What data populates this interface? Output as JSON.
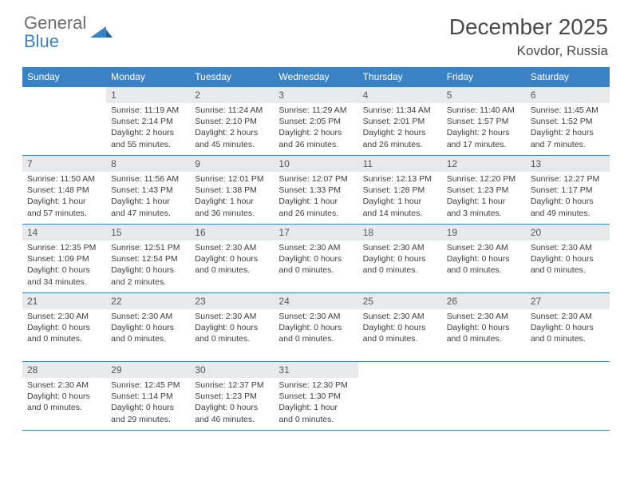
{
  "brand": {
    "word1": "General",
    "word2": "Blue"
  },
  "colors": {
    "accent": "#3b82c4",
    "header_bg": "#3b82c4",
    "header_text": "#ffffff",
    "daynum_bg": "#e8e9eb",
    "text": "#3a3a3a",
    "border": "#3b82c4"
  },
  "title": "December 2025",
  "location": "Kovdor, Russia",
  "weekdays": [
    "Sunday",
    "Monday",
    "Tuesday",
    "Wednesday",
    "Thursday",
    "Friday",
    "Saturday"
  ],
  "weeks": [
    [
      {
        "num": "",
        "lines": []
      },
      {
        "num": "1",
        "lines": [
          "Sunrise: 11:19 AM",
          "Sunset: 2:14 PM",
          "Daylight: 2 hours and 55 minutes."
        ]
      },
      {
        "num": "2",
        "lines": [
          "Sunrise: 11:24 AM",
          "Sunset: 2:10 PM",
          "Daylight: 2 hours and 45 minutes."
        ]
      },
      {
        "num": "3",
        "lines": [
          "Sunrise: 11:29 AM",
          "Sunset: 2:05 PM",
          "Daylight: 2 hours and 36 minutes."
        ]
      },
      {
        "num": "4",
        "lines": [
          "Sunrise: 11:34 AM",
          "Sunset: 2:01 PM",
          "Daylight: 2 hours and 26 minutes."
        ]
      },
      {
        "num": "5",
        "lines": [
          "Sunrise: 11:40 AM",
          "Sunset: 1:57 PM",
          "Daylight: 2 hours and 17 minutes."
        ]
      },
      {
        "num": "6",
        "lines": [
          "Sunrise: 11:45 AM",
          "Sunset: 1:52 PM",
          "Daylight: 2 hours and 7 minutes."
        ]
      }
    ],
    [
      {
        "num": "7",
        "lines": [
          "Sunrise: 11:50 AM",
          "Sunset: 1:48 PM",
          "Daylight: 1 hour and 57 minutes."
        ]
      },
      {
        "num": "8",
        "lines": [
          "Sunrise: 11:56 AM",
          "Sunset: 1:43 PM",
          "Daylight: 1 hour and 47 minutes."
        ]
      },
      {
        "num": "9",
        "lines": [
          "Sunrise: 12:01 PM",
          "Sunset: 1:38 PM",
          "Daylight: 1 hour and 36 minutes."
        ]
      },
      {
        "num": "10",
        "lines": [
          "Sunrise: 12:07 PM",
          "Sunset: 1:33 PM",
          "Daylight: 1 hour and 26 minutes."
        ]
      },
      {
        "num": "11",
        "lines": [
          "Sunrise: 12:13 PM",
          "Sunset: 1:28 PM",
          "Daylight: 1 hour and 14 minutes."
        ]
      },
      {
        "num": "12",
        "lines": [
          "Sunrise: 12:20 PM",
          "Sunset: 1:23 PM",
          "Daylight: 1 hour and 3 minutes."
        ]
      },
      {
        "num": "13",
        "lines": [
          "Sunrise: 12:27 PM",
          "Sunset: 1:17 PM",
          "Daylight: 0 hours and 49 minutes."
        ]
      }
    ],
    [
      {
        "num": "14",
        "lines": [
          "Sunrise: 12:35 PM",
          "Sunset: 1:09 PM",
          "Daylight: 0 hours and 34 minutes."
        ]
      },
      {
        "num": "15",
        "lines": [
          "Sunrise: 12:51 PM",
          "Sunset: 12:54 PM",
          "Daylight: 0 hours and 2 minutes."
        ]
      },
      {
        "num": "16",
        "lines": [
          "",
          "Sunset: 2:30 AM",
          "Daylight: 0 hours and 0 minutes."
        ]
      },
      {
        "num": "17",
        "lines": [
          "",
          "Sunset: 2:30 AM",
          "Daylight: 0 hours and 0 minutes."
        ]
      },
      {
        "num": "18",
        "lines": [
          "",
          "Sunset: 2:30 AM",
          "Daylight: 0 hours and 0 minutes."
        ]
      },
      {
        "num": "19",
        "lines": [
          "",
          "Sunset: 2:30 AM",
          "Daylight: 0 hours and 0 minutes."
        ]
      },
      {
        "num": "20",
        "lines": [
          "",
          "Sunset: 2:30 AM",
          "Daylight: 0 hours and 0 minutes."
        ]
      }
    ],
    [
      {
        "num": "21",
        "lines": [
          "",
          "Sunset: 2:30 AM",
          "Daylight: 0 hours and 0 minutes."
        ]
      },
      {
        "num": "22",
        "lines": [
          "",
          "Sunset: 2:30 AM",
          "Daylight: 0 hours and 0 minutes."
        ]
      },
      {
        "num": "23",
        "lines": [
          "",
          "Sunset: 2:30 AM",
          "Daylight: 0 hours and 0 minutes."
        ]
      },
      {
        "num": "24",
        "lines": [
          "",
          "Sunset: 2:30 AM",
          "Daylight: 0 hours and 0 minutes."
        ]
      },
      {
        "num": "25",
        "lines": [
          "",
          "Sunset: 2:30 AM",
          "Daylight: 0 hours and 0 minutes."
        ]
      },
      {
        "num": "26",
        "lines": [
          "",
          "Sunset: 2:30 AM",
          "Daylight: 0 hours and 0 minutes."
        ]
      },
      {
        "num": "27",
        "lines": [
          "",
          "Sunset: 2:30 AM",
          "Daylight: 0 hours and 0 minutes."
        ]
      }
    ],
    [
      {
        "num": "28",
        "lines": [
          "",
          "Sunset: 2:30 AM",
          "Daylight: 0 hours and 0 minutes."
        ]
      },
      {
        "num": "29",
        "lines": [
          "Sunrise: 12:45 PM",
          "Sunset: 1:14 PM",
          "Daylight: 0 hours and 29 minutes."
        ]
      },
      {
        "num": "30",
        "lines": [
          "Sunrise: 12:37 PM",
          "Sunset: 1:23 PM",
          "Daylight: 0 hours and 46 minutes."
        ]
      },
      {
        "num": "31",
        "lines": [
          "Sunrise: 12:30 PM",
          "Sunset: 1:30 PM",
          "Daylight: 1 hour and 0 minutes."
        ]
      },
      {
        "num": "",
        "lines": []
      },
      {
        "num": "",
        "lines": []
      },
      {
        "num": "",
        "lines": []
      }
    ]
  ]
}
